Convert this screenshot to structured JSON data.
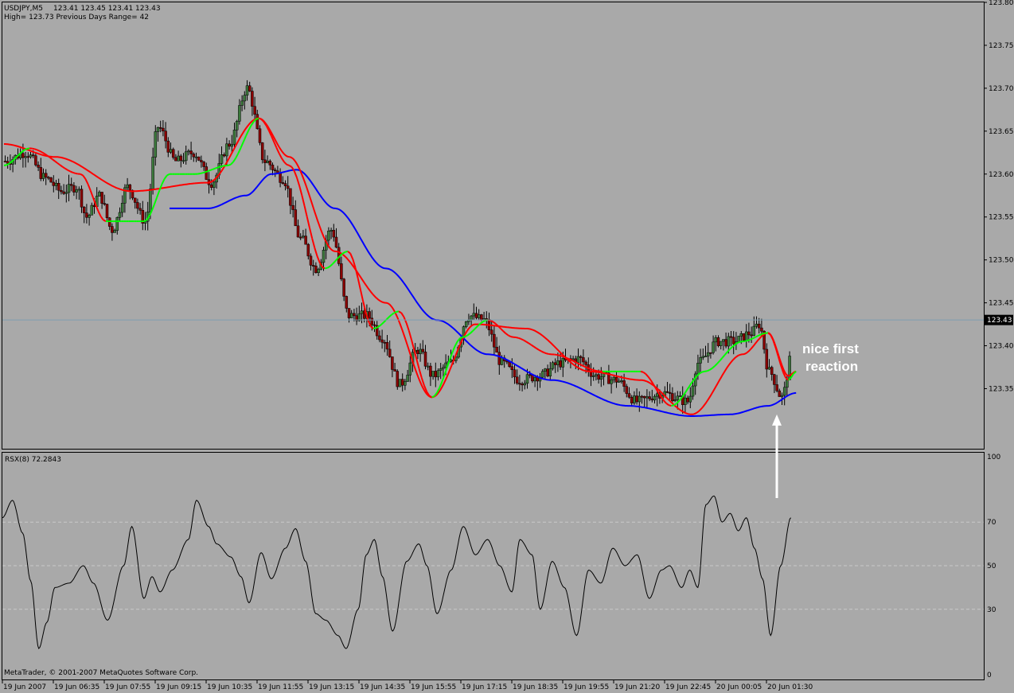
{
  "chart_data": [
    {
      "type": "candlestick",
      "symbol": "USDJPY,M5",
      "ohlc_header": "123.41 123.45 123.41 123.43",
      "info_line": "High= 123.73    Previous Days Range= 42",
      "current_price": 123.43,
      "current_price_label": "123.43",
      "ylim": [
        123.28,
        123.8
      ],
      "y_ticks": [
        123.8,
        123.75,
        123.7,
        123.65,
        123.6,
        123.55,
        123.5,
        123.45,
        123.4,
        123.35
      ],
      "y_tick_labels": [
        "123.80",
        "123.75",
        "123.70",
        "123.65",
        "123.60",
        "123.55",
        "123.50",
        "123.45",
        "123.40",
        "123.35"
      ],
      "bar_count": 195,
      "close_anchors": [
        [
          0,
          123.615
        ],
        [
          8,
          123.625
        ],
        [
          16,
          123.595
        ],
        [
          22,
          123.58
        ],
        [
          28,
          123.585
        ],
        [
          32,
          123.55
        ],
        [
          37,
          123.575
        ],
        [
          42,
          123.535
        ],
        [
          48,
          123.585
        ],
        [
          55,
          123.545
        ],
        [
          60,
          123.655
        ],
        [
          67,
          123.615
        ],
        [
          74,
          123.625
        ],
        [
          81,
          123.59
        ],
        [
          88,
          123.635
        ],
        [
          95,
          123.7
        ],
        [
          102,
          123.615
        ],
        [
          109,
          123.595
        ],
        [
          116,
          123.525
        ],
        [
          122,
          123.49
        ],
        [
          128,
          123.535
        ],
        [
          135,
          123.435
        ],
        [
          142,
          123.435
        ],
        [
          148,
          123.41
        ],
        [
          155,
          123.355
        ],
        [
          162,
          123.395
        ],
        [
          168,
          123.365
        ],
        [
          175,
          123.38
        ],
        [
          182,
          123.435
        ],
        [
          188,
          123.43
        ],
        [
          195,
          123.38
        ],
        [
          202,
          123.36
        ],
        [
          210,
          123.365
        ],
        [
          218,
          123.38
        ],
        [
          225,
          123.385
        ],
        [
          232,
          123.365
        ],
        [
          240,
          123.36
        ],
        [
          248,
          123.335
        ],
        [
          258,
          123.345
        ],
        [
          268,
          123.335
        ],
        [
          272,
          123.38
        ],
        [
          280,
          123.405
        ],
        [
          286,
          123.405
        ],
        [
          293,
          123.415
        ],
        [
          296,
          123.425
        ],
        [
          300,
          123.37
        ],
        [
          305,
          123.34
        ],
        [
          309,
          123.39
        ],
        [
          311,
          123.43
        ]
      ],
      "red_ma_anchors": [
        [
          0,
          123.635
        ],
        [
          20,
          123.62
        ],
        [
          50,
          123.58
        ],
        [
          80,
          123.59
        ],
        [
          100,
          123.665
        ],
        [
          112,
          123.62
        ],
        [
          130,
          123.51
        ],
        [
          150,
          123.45
        ],
        [
          168,
          123.34
        ],
        [
          185,
          123.425
        ],
        [
          205,
          123.42
        ],
        [
          230,
          123.37
        ],
        [
          250,
          123.36
        ],
        [
          270,
          123.32
        ],
        [
          290,
          123.39
        ],
        [
          300,
          123.415
        ],
        [
          308,
          123.365
        ],
        [
          311,
          123.37
        ]
      ],
      "green_ma_anchors": [
        [
          0,
          123.61
        ],
        [
          10,
          123.63
        ],
        [
          30,
          123.6
        ],
        [
          40,
          123.545
        ],
        [
          55,
          123.545
        ],
        [
          65,
          123.6
        ],
        [
          75,
          123.6
        ],
        [
          88,
          123.61
        ],
        [
          100,
          123.665
        ],
        [
          112,
          123.61
        ],
        [
          126,
          123.49
        ],
        [
          135,
          123.51
        ],
        [
          145,
          123.42
        ],
        [
          155,
          123.44
        ],
        [
          168,
          123.34
        ],
        [
          180,
          123.41
        ],
        [
          190,
          123.43
        ],
        [
          200,
          123.41
        ],
        [
          215,
          123.39
        ],
        [
          235,
          123.37
        ],
        [
          250,
          123.37
        ],
        [
          262,
          123.33
        ],
        [
          275,
          123.37
        ],
        [
          290,
          123.405
        ],
        [
          300,
          123.415
        ],
        [
          308,
          123.36
        ],
        [
          311,
          123.37
        ]
      ],
      "blue_ma_anchors": [
        [
          65,
          123.56
        ],
        [
          80,
          123.56
        ],
        [
          95,
          123.575
        ],
        [
          105,
          123.6
        ],
        [
          115,
          123.605
        ],
        [
          130,
          123.56
        ],
        [
          150,
          123.49
        ],
        [
          170,
          123.43
        ],
        [
          190,
          123.39
        ],
        [
          215,
          123.36
        ],
        [
          245,
          123.33
        ],
        [
          270,
          123.318
        ],
        [
          285,
          123.32
        ],
        [
          300,
          123.33
        ],
        [
          311,
          123.345
        ]
      ],
      "annotation": {
        "text_line1": "nice first",
        "text_line2": "reaction",
        "arrow_at_price": 123.32
      }
    },
    {
      "type": "line",
      "title": "RSX(8) 72.2843",
      "ylim": [
        0,
        100
      ],
      "levels": [
        70,
        50,
        30
      ],
      "y_tick_labels": [
        "100",
        "70",
        "50",
        "30",
        "0"
      ],
      "rsx_anchors": [
        [
          0,
          72
        ],
        [
          5,
          80
        ],
        [
          10,
          65
        ],
        [
          14,
          43
        ],
        [
          18,
          12
        ],
        [
          22,
          24
        ],
        [
          26,
          40
        ],
        [
          33,
          42
        ],
        [
          40,
          50
        ],
        [
          45,
          42
        ],
        [
          52,
          25
        ],
        [
          60,
          50
        ],
        [
          64,
          68
        ],
        [
          70,
          35
        ],
        [
          74,
          45
        ],
        [
          78,
          38
        ],
        [
          84,
          48
        ],
        [
          92,
          62
        ],
        [
          96,
          80
        ],
        [
          102,
          68
        ],
        [
          106,
          60
        ],
        [
          113,
          54
        ],
        [
          118,
          45
        ],
        [
          122,
          33
        ],
        [
          128,
          56
        ],
        [
          133,
          44
        ],
        [
          140,
          58
        ],
        [
          145,
          67
        ],
        [
          150,
          52
        ],
        [
          155,
          28
        ],
        [
          160,
          25
        ],
        [
          166,
          18
        ],
        [
          170,
          12
        ],
        [
          176,
          30
        ],
        [
          180,
          55
        ],
        [
          184,
          62
        ],
        [
          188,
          45
        ],
        [
          193,
          20
        ],
        [
          200,
          52
        ],
        [
          206,
          60
        ],
        [
          210,
          50
        ],
        [
          215,
          28
        ],
        [
          222,
          48
        ],
        [
          228,
          68
        ],
        [
          234,
          55
        ],
        [
          240,
          62
        ],
        [
          246,
          50
        ],
        [
          252,
          38
        ],
        [
          256,
          62
        ],
        [
          262,
          55
        ],
        [
          266,
          30
        ],
        [
          272,
          52
        ],
        [
          278,
          40
        ],
        [
          284,
          18
        ],
        [
          290,
          48
        ],
        [
          296,
          42
        ],
        [
          302,
          58
        ],
        [
          308,
          50
        ],
        [
          314,
          55
        ],
        [
          320,
          35
        ],
        [
          326,
          48
        ],
        [
          330,
          50
        ],
        [
          336,
          40
        ],
        [
          340,
          48
        ],
        [
          344,
          40
        ],
        [
          348,
          78
        ],
        [
          352,
          82
        ],
        [
          356,
          70
        ],
        [
          360,
          74
        ],
        [
          364,
          66
        ],
        [
          368,
          72
        ],
        [
          372,
          58
        ],
        [
          376,
          44
        ],
        [
          380,
          18
        ],
        [
          385,
          50
        ],
        [
          390,
          72
        ]
      ]
    }
  ],
  "x_axis": {
    "tick_labels": [
      "19 Jun 2007",
      "19 Jun 06:35",
      "19 Jun 07:55",
      "19 Jun 09:15",
      "19 Jun 10:35",
      "19 Jun 11:55",
      "19 Jun 13:15",
      "19 Jun 14:35",
      "19 Jun 15:55",
      "19 Jun 17:15",
      "19 Jun 18:35",
      "19 Jun 19:55",
      "19 Jun 21:20",
      "19 Jun 22:45",
      "20 Jun 00:05",
      "20 Jun 01:30"
    ]
  },
  "copyright": "MetaTrader, © 2001-2007 MetaQuotes Software Corp.",
  "colors": {
    "background": "#a9a9a9",
    "bull_candle": "#3c7a3c",
    "bear_candle": "#8b0000",
    "wick": "#000000",
    "red_ma": "#ff0000",
    "green_ma": "#00ff00",
    "blue_ma": "#0000ff",
    "price_line": "#7f9fb0",
    "rsx_line": "#000000"
  }
}
